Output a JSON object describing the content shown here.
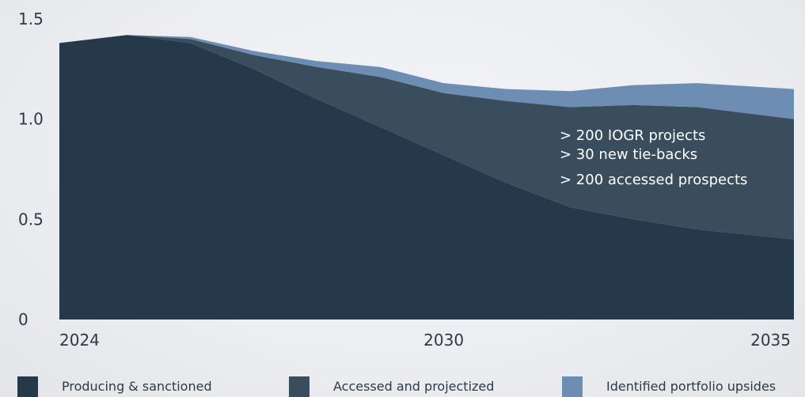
{
  "chart_data": {
    "type": "area",
    "stacked": true,
    "x": [
      2024,
      2025,
      2026,
      2027,
      2028,
      2029,
      2030,
      2031,
      2032,
      2033,
      2034,
      2035
    ],
    "x_ticks": [
      "2024",
      "2030",
      "2035"
    ],
    "y_ticks": [
      "1.5",
      "1.0",
      "0.5",
      "0"
    ],
    "ylim": [
      0,
      1.5
    ],
    "xlim": [
      2023.93,
      2035.53
    ],
    "series": [
      {
        "name": "Producing & sanctioned",
        "color": "#26394a",
        "values": [
          1.38,
          1.42,
          1.38,
          1.25,
          1.1,
          0.96,
          0.82,
          0.68,
          0.56,
          0.5,
          0.45,
          0.4
        ]
      },
      {
        "name": "Accessed and projectized",
        "color": "#3a4d5c",
        "values": [
          0.0,
          0.0,
          0.02,
          0.07,
          0.16,
          0.25,
          0.31,
          0.41,
          0.5,
          0.57,
          0.61,
          0.6
        ]
      },
      {
        "name": "Identified portfolio upsides",
        "color": "#6d8db3",
        "values": [
          0.0,
          0.0,
          0.01,
          0.02,
          0.03,
          0.05,
          0.05,
          0.06,
          0.08,
          0.1,
          0.12,
          0.15
        ]
      }
    ],
    "annotations": [
      "> 200 IOGR projects",
      "> 30 new tie-backs",
      "> 200 accessed prospects"
    ],
    "grid": false,
    "legend_position": "bottom"
  }
}
